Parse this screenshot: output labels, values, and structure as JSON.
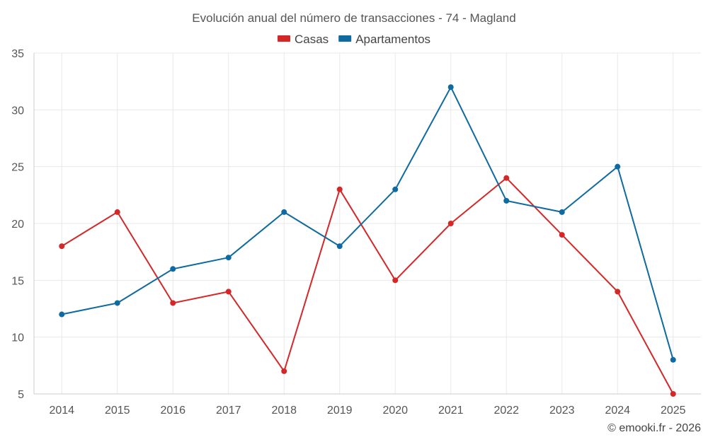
{
  "chart_data": {
    "type": "line",
    "title": "Evolución anual del número de transacciones - 74 - Magland",
    "categories": [
      "2014",
      "2015",
      "2016",
      "2017",
      "2018",
      "2019",
      "2020",
      "2021",
      "2022",
      "2023",
      "2024",
      "2025"
    ],
    "series": [
      {
        "name": "Casas",
        "color": "#d62728",
        "values": [
          18,
          21,
          13,
          14,
          7,
          23,
          15,
          20,
          24,
          19,
          14,
          5
        ]
      },
      {
        "name": "Apartamentos",
        "color": "#0e6aa0",
        "values": [
          12,
          13,
          16,
          17,
          21,
          18,
          23,
          32,
          22,
          21,
          25,
          8
        ]
      }
    ],
    "ylim": [
      5,
      35
    ],
    "yticks": [
      5,
      10,
      15,
      20,
      25,
      30,
      35
    ],
    "xlabel": "",
    "ylabel": "",
    "legend": "top-center",
    "grid": true
  },
  "credit": "© emooki.fr - 2026"
}
